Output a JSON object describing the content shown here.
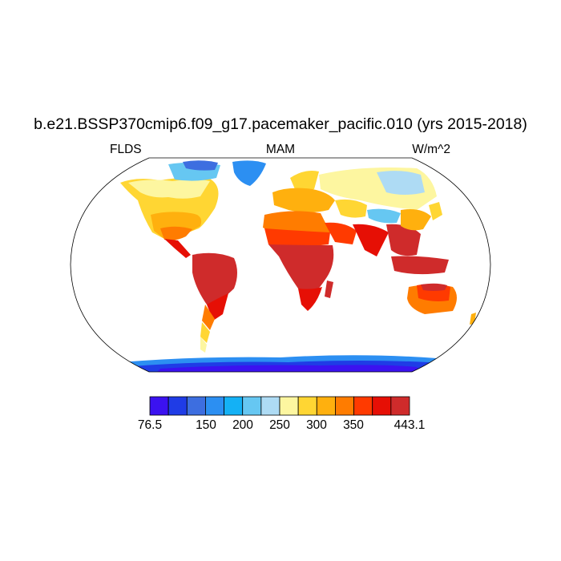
{
  "title": "b.e21.BSSP370cmip6.f09_g17.pacemaker_pacific.010 (yrs 2015-2018)",
  "left_label": "FLDS",
  "center_label": "MAM",
  "right_label": "W/m^2",
  "colorbar": {
    "colors": [
      "#3b12f0",
      "#1f3ce6",
      "#3d6ee0",
      "#2c8ff2",
      "#14b1f5",
      "#66c7f2",
      "#aedbf4",
      "#fdf6a0",
      "#ffd633",
      "#ffb00e",
      "#ff7c00",
      "#ff3a00",
      "#e60f05",
      "#cf2b2b"
    ],
    "min_label": "76.5",
    "max_label": "443.1",
    "tick_labels": [
      "150",
      "200",
      "250",
      "300",
      "350"
    ]
  },
  "map": {
    "projection": "Robinson",
    "colors": {
      "polar": "#3b12f0",
      "sub_polar": "#1f3ce6",
      "cold": "#3d6ee0",
      "cool": "#2c8ff2",
      "chilly": "#66c7f2",
      "light_blue": "#aedbf4",
      "pale_yellow": "#fdf6a0",
      "yellow": "#ffd633",
      "gold": "#ffb00e",
      "orange": "#ff7c00",
      "red_orange": "#ff3a00",
      "red": "#e60f05",
      "dark_red": "#cf2b2b"
    }
  }
}
